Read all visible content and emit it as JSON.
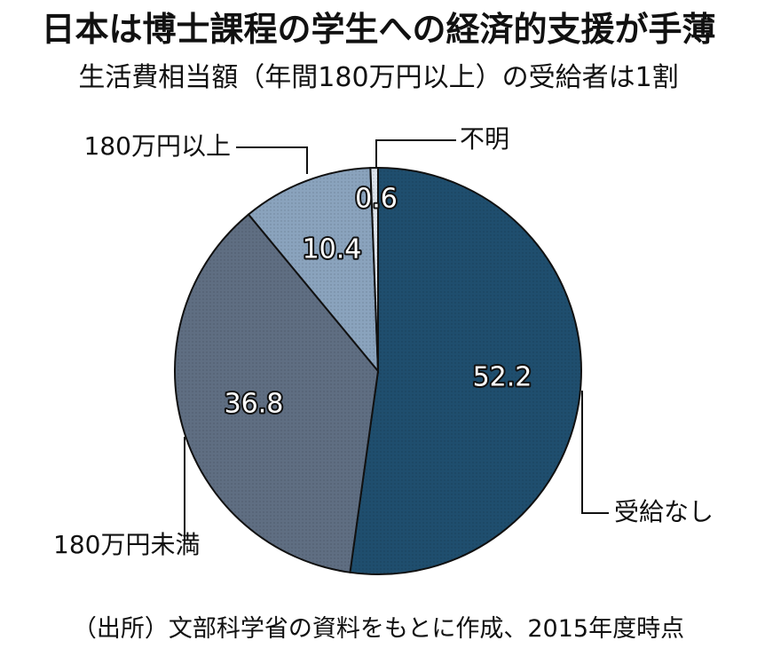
{
  "chart_data": {
    "type": "pie",
    "title": "日本は博士課程の学生への経済的支援が手薄",
    "subtitle": "生活費相当額（年間180万円以上）の受給者は1割",
    "source_note": "（出所）文部科学省の資料をもとに作成、2015年度時点",
    "slices": [
      {
        "label": "受給なし",
        "value": 52.2,
        "value_label": "52.2",
        "color": "#1f4e6e"
      },
      {
        "label": "180万円未満",
        "value": 36.8,
        "value_label": "36.8",
        "color": "#5f6e82"
      },
      {
        "label": "180万円以上",
        "value": 10.4,
        "value_label": "10.4",
        "color": "#8aa3bd"
      },
      {
        "label": "不明",
        "value": 0.6,
        "value_label": "0.6",
        "color": "#dde4ec"
      }
    ]
  }
}
